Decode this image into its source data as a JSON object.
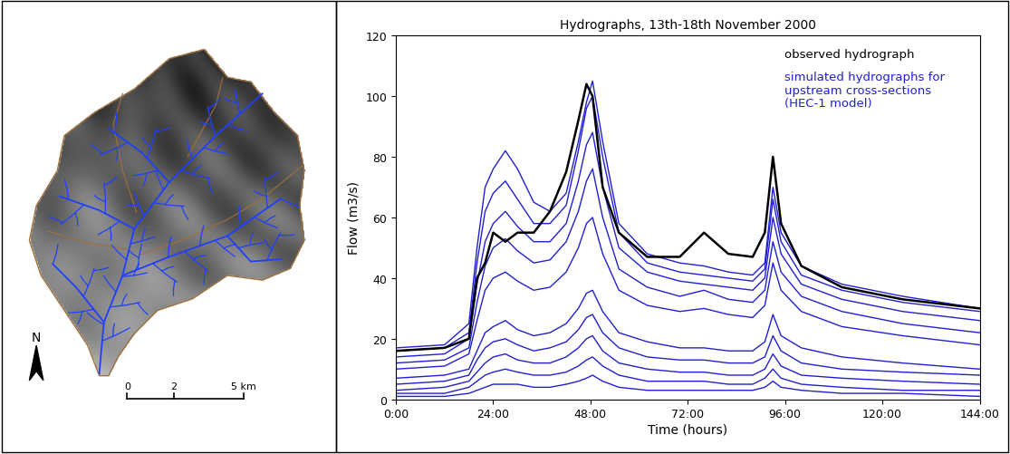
{
  "chart_data": [
    {
      "type": "map",
      "north_label": "N",
      "scale_bar": {
        "ticks": [
          {
            "value": 0,
            "label": "0"
          },
          {
            "value": 2,
            "label": "2"
          },
          {
            "value": 5,
            "label": "5 km"
          }
        ]
      }
    },
    {
      "type": "line",
      "title": "Hydrographs, 13th-18th November 2000",
      "x_label": "Time (hours)",
      "y_label": "Flow (m3/s)",
      "xlim": [
        0,
        144
      ],
      "xticks": [
        {
          "value": 0,
          "label": "0:00"
        },
        {
          "value": 24,
          "label": "24:00"
        },
        {
          "value": 48,
          "label": "48:00"
        },
        {
          "value": 72,
          "label": "72:00"
        },
        {
          "value": 96,
          "label": "96:00"
        },
        {
          "value": 120,
          "label": "120:00"
        },
        {
          "value": 144,
          "label": "144:00"
        }
      ],
      "ylim": [
        0,
        120
      ],
      "yticks": [
        0,
        20,
        40,
        60,
        80,
        100,
        120
      ],
      "grid": false,
      "annotations": [
        {
          "text": "observed hydrograph",
          "color": "#000000"
        },
        {
          "text": "simulated hydrographs for\nupstream cross-sections\n(HEC-1 model)",
          "color": "#2020d0"
        }
      ],
      "x": [
        0,
        12,
        18,
        20,
        22,
        24,
        27,
        30,
        34,
        38,
        42,
        45,
        47,
        48.5,
        51,
        55,
        62,
        70,
        76,
        82,
        88,
        91,
        93,
        95,
        100,
        110,
        125,
        144
      ],
      "series": [
        {
          "color": "#2020d0",
          "values": [
            17,
            18,
            25,
            50,
            70,
            76,
            82,
            76,
            65,
            62,
            68,
            85,
            98,
            105,
            85,
            58,
            48,
            45,
            44,
            42,
            41,
            45,
            70,
            55,
            44,
            38,
            34,
            30
          ]
        },
        {
          "color": "#2020d0",
          "values": [
            16,
            17,
            22,
            45,
            62,
            68,
            72,
            66,
            58,
            58,
            64,
            82,
            96,
            100,
            80,
            55,
            45,
            42,
            41,
            40,
            39,
            43,
            66,
            52,
            41,
            36,
            32,
            29
          ]
        },
        {
          "color": "#2020d0",
          "values": [
            14,
            15,
            20,
            38,
            52,
            58,
            62,
            57,
            52,
            52,
            58,
            72,
            84,
            88,
            70,
            50,
            42,
            39,
            38,
            37,
            36,
            40,
            60,
            48,
            38,
            33,
            29,
            26
          ]
        },
        {
          "color": "#2020d0",
          "values": [
            12,
            13,
            17,
            32,
            44,
            50,
            53,
            49,
            45,
            46,
            52,
            62,
            72,
            76,
            60,
            43,
            37,
            34,
            36,
            33,
            32,
            36,
            52,
            42,
            34,
            29,
            25,
            22
          ]
        },
        {
          "color": "#2020d0",
          "values": [
            10,
            11,
            15,
            26,
            36,
            40,
            42,
            39,
            36,
            37,
            42,
            50,
            58,
            60,
            48,
            36,
            31,
            29,
            30,
            28,
            27,
            31,
            45,
            36,
            29,
            24,
            21,
            18
          ]
        },
        {
          "color": "#2020d0",
          "values": [
            7,
            8,
            10,
            16,
            22,
            24,
            26,
            23,
            21,
            22,
            25,
            30,
            35,
            36,
            29,
            22,
            19,
            17,
            17,
            16,
            16,
            19,
            28,
            21,
            17,
            14,
            12,
            10
          ]
        },
        {
          "color": "#2020d0",
          "values": [
            5,
            6,
            8,
            13,
            17,
            19,
            20,
            18,
            16,
            17,
            19,
            23,
            27,
            28,
            22,
            17,
            14,
            13,
            13,
            12,
            12,
            14,
            21,
            16,
            12,
            10,
            9,
            8
          ]
        },
        {
          "color": "#2020d0",
          "values": [
            3,
            4,
            6,
            9,
            12,
            14,
            15,
            13,
            12,
            12,
            14,
            17,
            20,
            21,
            16,
            12,
            10,
            9,
            9,
            8,
            8,
            10,
            15,
            11,
            8,
            7,
            6,
            5
          ]
        },
        {
          "color": "#2020d0",
          "values": [
            2,
            2,
            4,
            6,
            8,
            9,
            10,
            9,
            8,
            8,
            9,
            11,
            13,
            14,
            11,
            8,
            6,
            6,
            6,
            5,
            5,
            7,
            10,
            7,
            5,
            4,
            3,
            3
          ]
        },
        {
          "color": "#2020d0",
          "values": [
            1,
            1,
            2,
            3,
            4,
            5,
            5,
            5,
            4,
            4,
            5,
            6,
            7,
            8,
            6,
            4,
            3,
            3,
            3,
            3,
            3,
            4,
            6,
            4,
            3,
            2,
            2,
            1
          ]
        },
        {
          "color": "#000000",
          "values": [
            16,
            17,
            20,
            40,
            45,
            55,
            52,
            55,
            55,
            62,
            75,
            92,
            104,
            100,
            70,
            55,
            47,
            47,
            55,
            48,
            47,
            55,
            80,
            58,
            44,
            37,
            33,
            30
          ]
        }
      ]
    }
  ]
}
